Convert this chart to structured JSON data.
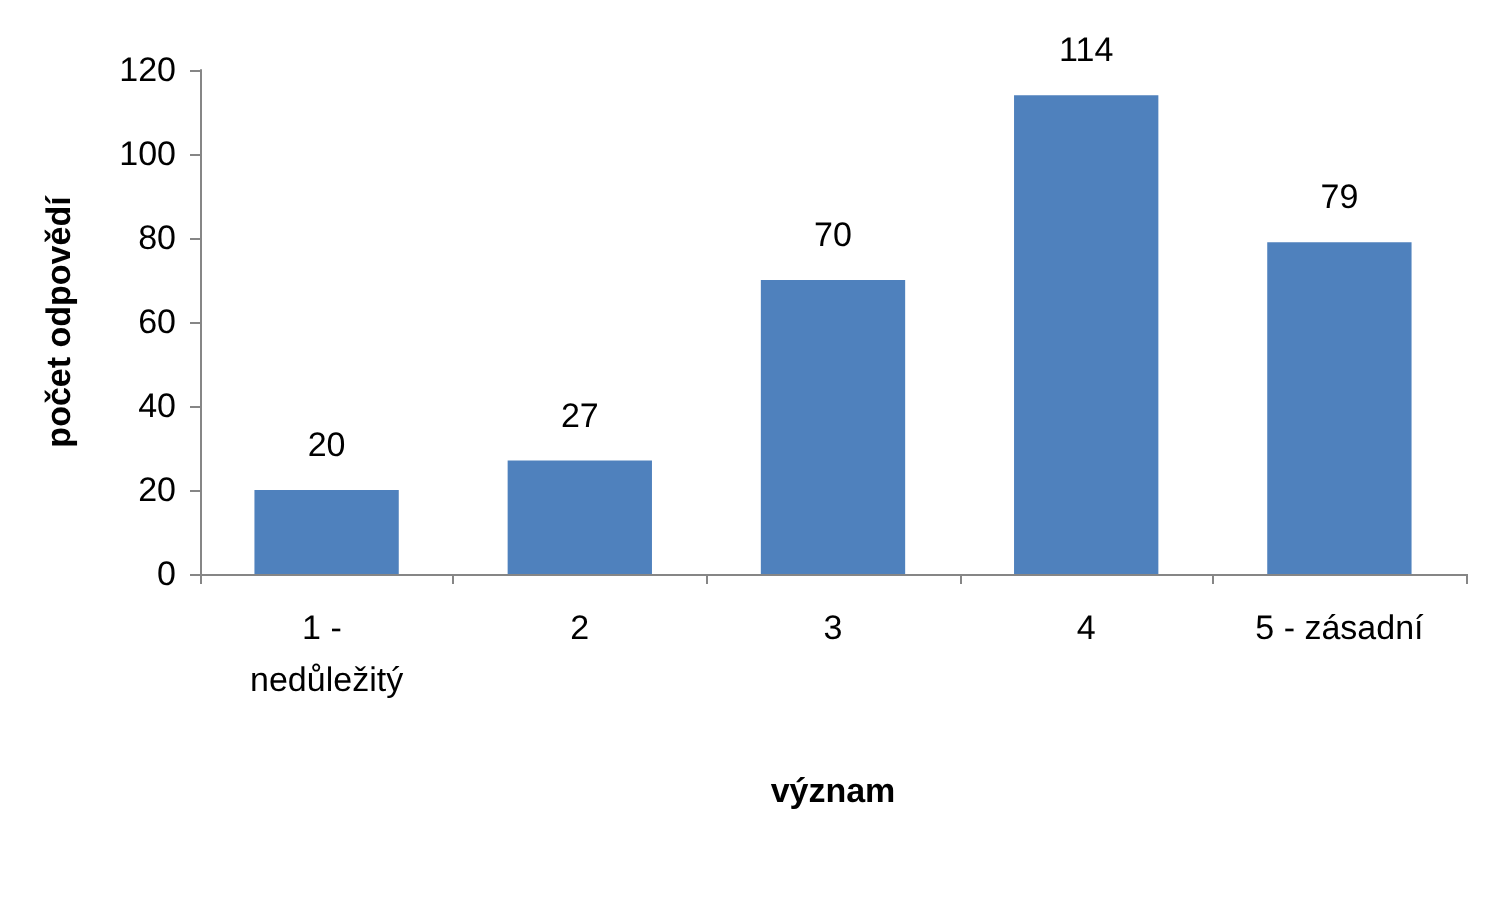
{
  "chart_data": {
    "type": "bar",
    "xlabel": "význam",
    "ylabel": "počet odpovědí",
    "categories": [
      "1 - nedůležitý",
      "2",
      "3",
      "4",
      "5 - zásadní"
    ],
    "values": [
      20,
      27,
      70,
      114,
      79
    ],
    "color": "#4f81bd",
    "ylim": [
      0,
      120
    ],
    "yticks": [
      0,
      20,
      40,
      60,
      80,
      100,
      120
    ],
    "grid": false,
    "data_labels": true
  }
}
